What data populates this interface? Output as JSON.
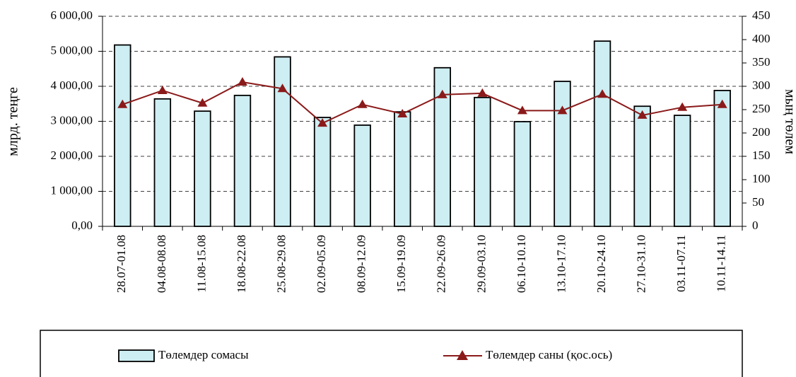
{
  "chart_data": {
    "type": "bar-line",
    "categories": [
      "28.07-01.08",
      "04.08-08.08",
      "11.08-15.08",
      "18.08-22.08",
      "25.08-29.08",
      "02.09-05.09",
      "08.09-12.09",
      "15.09-19.09",
      "22.09-26.09",
      "29.09-03.10",
      "06.10-10.10",
      "13.10-17.10",
      "20.10-24.10",
      "27.10-31.10",
      "03.11-07.11",
      "10.11-14.11"
    ],
    "y_label": "млрд. теңге",
    "y2_label": "мың төлем",
    "series": [
      {
        "name": "Төлемдер сомасы",
        "type": "bar",
        "color": "#cdeef3",
        "values": [
          5180,
          3640,
          3290,
          3740,
          4840,
          3110,
          2890,
          3270,
          4530,
          3680,
          2990,
          4140,
          5290,
          3430,
          3170,
          3880
        ]
      },
      {
        "name": "Төлемдер саны (қос.ось)",
        "type": "line",
        "axis": "y2",
        "color": "#8b1a1a",
        "values": [
          261,
          291,
          264,
          309,
          295,
          221,
          261,
          241,
          282,
          285,
          248,
          248,
          283,
          238,
          255,
          261
        ]
      }
    ],
    "ylim": [
      0,
      6000
    ],
    "yticks": [
      {
        "value": 0,
        "label": "0,00"
      },
      {
        "value": 1000,
        "label": "1 000,00"
      },
      {
        "value": 2000,
        "label": "2 000,00"
      },
      {
        "value": 3000,
        "label": "3 000,00"
      },
      {
        "value": 4000,
        "label": "4 000,00"
      },
      {
        "value": 5000,
        "label": "5 000,00"
      },
      {
        "value": 6000,
        "label": "6 000,00"
      }
    ],
    "y2lim": [
      0,
      450
    ],
    "y2ticks": [
      0,
      50,
      100,
      150,
      200,
      250,
      300,
      350,
      400,
      450
    ],
    "grid": true,
    "legend": "bottom"
  }
}
